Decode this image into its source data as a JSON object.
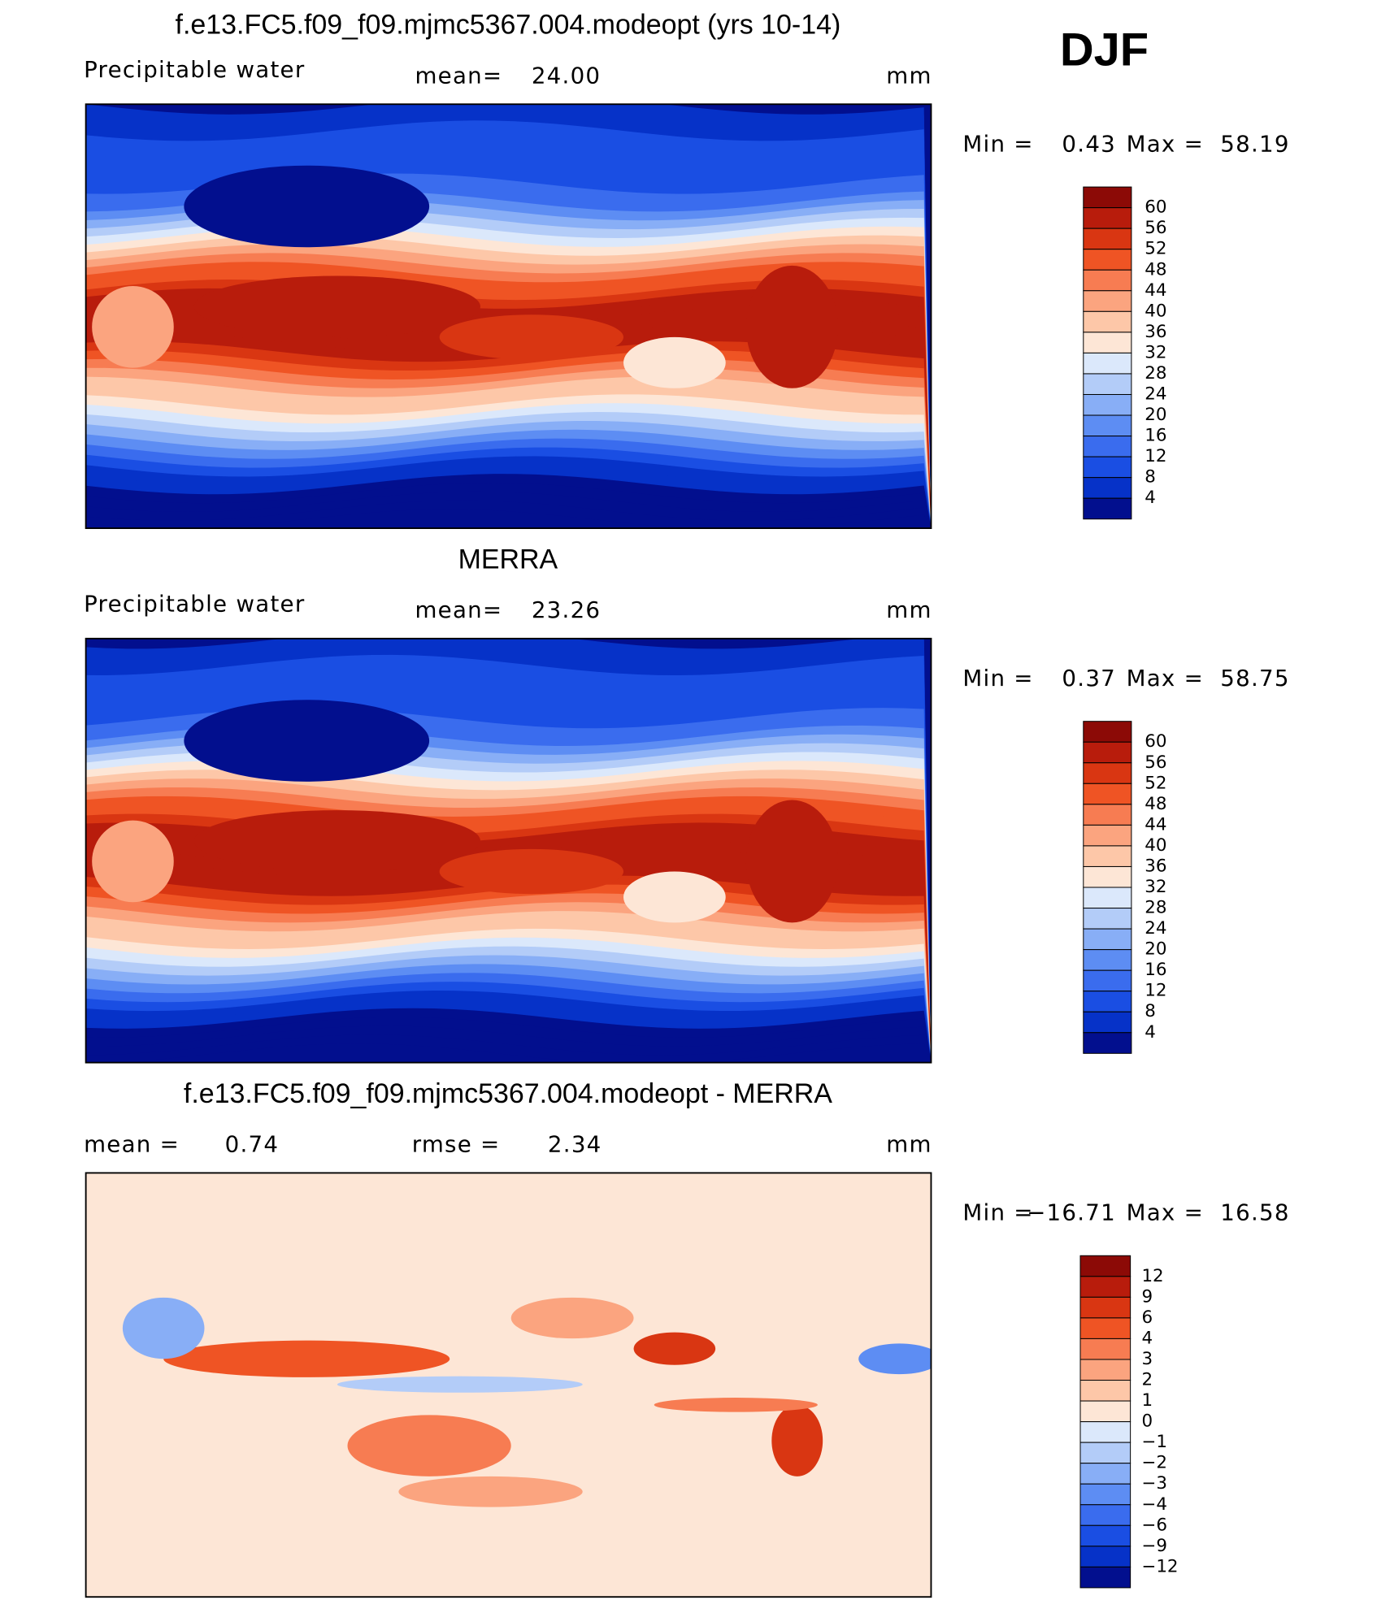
{
  "season": "DJF",
  "min_label": "Min =",
  "max_label": "Max =",
  "panels": [
    {
      "title": "f.e13.FC5.f09_f09.mjmc5367.004.modeopt (yrs 10-14)",
      "variable": "Precipitable water",
      "stats": [
        {
          "label": "mean=",
          "value": "24.00"
        }
      ],
      "units": "mm",
      "min": "0.43",
      "max": "58.19",
      "levels": [
        "60",
        "56",
        "52",
        "48",
        "44",
        "40",
        "36",
        "32",
        "28",
        "24",
        "20",
        "16",
        "12",
        "8",
        "4"
      ],
      "colors": [
        "#8c0a06",
        "#b81c0c",
        "#d93612",
        "#ef5424",
        "#f77c52",
        "#fba47f",
        "#fdc7a8",
        "#fde6d6",
        "#dbe8fb",
        "#b3ccf8",
        "#88aef6",
        "#5d8df3",
        "#3a6cee",
        "#1a4ee3",
        "#0632c8",
        "#020f8e"
      ]
    },
    {
      "title": "MERRA",
      "variable": "Precipitable water",
      "stats": [
        {
          "label": "mean=",
          "value": "23.26"
        }
      ],
      "units": "mm",
      "min": "0.37",
      "max": "58.75",
      "levels": [
        "60",
        "56",
        "52",
        "48",
        "44",
        "40",
        "36",
        "32",
        "28",
        "24",
        "20",
        "16",
        "12",
        "8",
        "4"
      ],
      "colors": [
        "#8c0a06",
        "#b81c0c",
        "#d93612",
        "#ef5424",
        "#f77c52",
        "#fba47f",
        "#fdc7a8",
        "#fde6d6",
        "#dbe8fb",
        "#b3ccf8",
        "#88aef6",
        "#5d8df3",
        "#3a6cee",
        "#1a4ee3",
        "#0632c8",
        "#020f8e"
      ]
    },
    {
      "title": "f.e13.FC5.f09_f09.mjmc5367.004.modeopt - MERRA",
      "stats": [
        {
          "label": "mean =",
          "value": "0.74"
        },
        {
          "label": "rmse =",
          "value": "2.34"
        }
      ],
      "units": "mm",
      "min": "−16.71",
      "max": "16.58",
      "levels": [
        "12",
        "9",
        "6",
        "4",
        "3",
        "2",
        "1",
        "0",
        "−1",
        "−2",
        "−3",
        "−4",
        "−6",
        "−9",
        "−12"
      ],
      "colors": [
        "#8c0a06",
        "#b81c0c",
        "#d93612",
        "#ef5424",
        "#f77c52",
        "#fba47f",
        "#fdc7a8",
        "#fde6d6",
        "#dbe8fb",
        "#b3ccf8",
        "#88aef6",
        "#5d8df3",
        "#3a6cee",
        "#1a4ee3",
        "#0632c8",
        "#020f8e"
      ]
    }
  ]
}
